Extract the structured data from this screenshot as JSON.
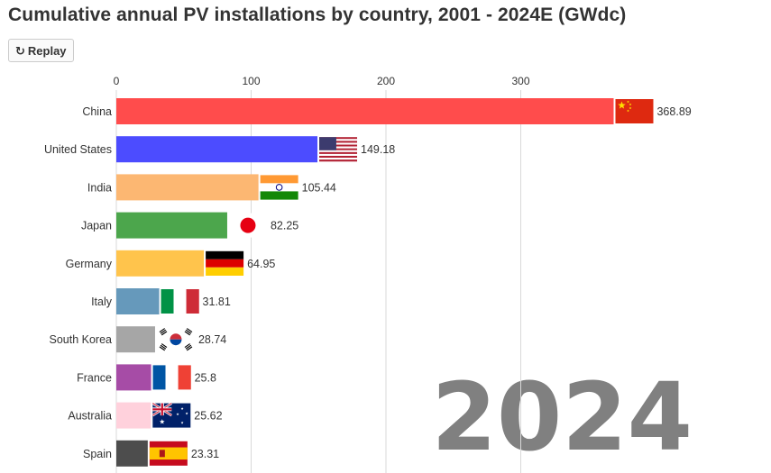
{
  "title": "Cumulative annual PV installations by country, 2001 - 2024E (GWdc)",
  "replay": {
    "icon": "replay-icon",
    "label": "Replay"
  },
  "chart_data": {
    "type": "bar",
    "orientation": "horizontal",
    "title": "Cumulative annual PV installations by country, 2001 - 2024E (GWdc)",
    "year_label": "2024",
    "xlim": [
      0,
      370
    ],
    "x_ticks": [
      0,
      100,
      200,
      300
    ],
    "x_tick_labels": [
      "0",
      "100",
      "200",
      "300"
    ],
    "grid": true,
    "categories": [
      "China",
      "United States",
      "India",
      "Japan",
      "Germany",
      "Italy",
      "South Korea",
      "France",
      "Australia",
      "Spain"
    ],
    "values": [
      368.89,
      149.18,
      105.44,
      82.25,
      64.95,
      31.81,
      28.74,
      25.8,
      25.62,
      23.31
    ],
    "value_labels": [
      "368.89",
      "149.18",
      "105.44",
      "82.25",
      "64.95",
      "31.81",
      "28.74",
      "25.8",
      "25.62",
      "23.31"
    ],
    "colors": [
      "#ff4c4c",
      "#4c4cff",
      "#fcb772",
      "#4ca64c",
      "#ffc44c",
      "#6699bb",
      "#a6a6a6",
      "#a64ca6",
      "#ffd1dc",
      "#4d4d4d"
    ],
    "flags": [
      "china-flag-icon",
      "usa-flag-icon",
      "india-flag-icon",
      "japan-flag-icon",
      "germany-flag-icon",
      "italy-flag-icon",
      "south-korea-flag-icon",
      "france-flag-icon",
      "australia-flag-icon",
      "spain-flag-icon"
    ]
  }
}
